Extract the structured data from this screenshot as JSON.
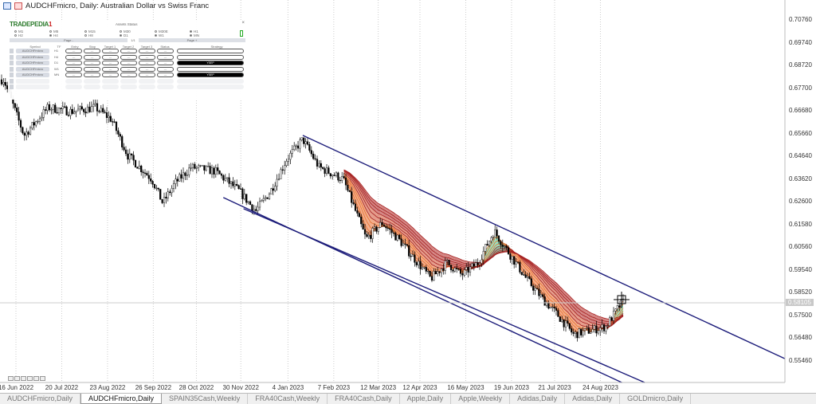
{
  "window": {
    "title": "AUDCHFmicro, Daily:  Australian Dollar vs Swiss Franc"
  },
  "panel": {
    "logo": "TRADEPEDIA",
    "logo_num": "1",
    "title": "Assets Status",
    "close": "×",
    "timeframes": [
      {
        "label": "M1",
        "on": false
      },
      {
        "label": "M5",
        "on": false
      },
      {
        "label": "M15",
        "on": false
      },
      {
        "label": "M30",
        "on": false
      },
      {
        "label": "M30E",
        "on": false
      },
      {
        "label": "H1",
        "on": true
      },
      {
        "label": "H2",
        "on": false
      },
      {
        "label": "H4",
        "on": true
      },
      {
        "label": "H8",
        "on": false
      },
      {
        "label": "D1",
        "on": true
      },
      {
        "label": "W1",
        "on": true
      },
      {
        "label": "MN",
        "on": true
      }
    ],
    "page_prev": "Page -",
    "page_num": "1/1",
    "page_next": "Page +",
    "headers": [
      "Symbol",
      "TF",
      "Entry",
      "Stop",
      "Target 1",
      "Target 2",
      "Target 3",
      "Status",
      "Strategy"
    ],
    "rows": [
      {
        "symbol": "AUDCHFmicro",
        "tf": "H1",
        "cells": [
          "---",
          "---",
          "---",
          "---",
          "---",
          "---"
        ],
        "strategy": ""
      },
      {
        "symbol": "AUDCHFmicro",
        "tf": "H4",
        "cells": [
          "---",
          "---",
          "---",
          "---",
          "---",
          "---"
        ],
        "strategy": ""
      },
      {
        "symbol": "AUDCHFmicro",
        "tf": "D1",
        "cells": [
          "---",
          "---",
          "---",
          "---",
          "---",
          "---"
        ],
        "strategy": "YSEP"
      },
      {
        "symbol": "AUDCHFmicro",
        "tf": "W1",
        "cells": [
          "---",
          "---",
          "---",
          "---",
          "---",
          "---"
        ],
        "strategy": ""
      },
      {
        "symbol": "AUDCHFmicro",
        "tf": "MN",
        "cells": [
          "---",
          "---",
          "---",
          "---",
          "---",
          "---"
        ],
        "strategy": "YSEP"
      }
    ]
  },
  "chart_data": {
    "type": "candlestick",
    "symbol": "AUDCHFmicro",
    "timeframe": "Daily",
    "y_ticks": [
      "0.70760",
      "0.69740",
      "0.68720",
      "0.67700",
      "0.66680",
      "0.65660",
      "0.64640",
      "0.63620",
      "0.62600",
      "0.61580",
      "0.60560",
      "0.59540",
      "0.58520",
      "0.57500",
      "0.56480",
      "0.55460"
    ],
    "ylim": [
      0.5546,
      0.7076
    ],
    "current_price": "0.58105",
    "x_ticks": [
      "16 Jun 2022",
      "20 Jul 2022",
      "23 Aug 2022",
      "26 Sep 2022",
      "28 Oct 2022",
      "30 Nov 2022",
      "4 Jan 2023",
      "7 Feb 2023",
      "12 Mar 2023",
      "12 Apr 2023",
      "16 May 2023",
      "19 Jun 2023",
      "21 Jul 2023",
      "24 Aug 2023"
    ],
    "x_tick_dates": [
      "2022-06-16",
      "2022-07-20",
      "2022-08-23",
      "2022-09-26",
      "2022-10-28",
      "2022-11-30",
      "2023-01-04",
      "2023-02-07",
      "2023-03-12",
      "2023-04-12",
      "2023-05-16",
      "2023-06-19",
      "2023-07-21",
      "2023-08-24"
    ],
    "close_path": [
      [
        "2022-06-07",
        0.6808
      ],
      [
        "2022-06-22",
        0.6558
      ],
      [
        "2022-07-10",
        0.6683
      ],
      [
        "2022-07-27",
        0.6665
      ],
      [
        "2022-08-14",
        0.6683
      ],
      [
        "2022-08-26",
        0.6629
      ],
      [
        "2022-09-07",
        0.6468
      ],
      [
        "2022-09-25",
        0.6361
      ],
      [
        "2022-10-03",
        0.6254
      ],
      [
        "2022-10-12",
        0.6343
      ],
      [
        "2022-10-24",
        0.6415
      ],
      [
        "2022-11-11",
        0.6397
      ],
      [
        "2022-11-29",
        0.6307
      ],
      [
        "2022-12-11",
        0.6218
      ],
      [
        "2022-12-22",
        0.6307
      ],
      [
        "2023-01-03",
        0.645
      ],
      [
        "2023-01-15",
        0.654
      ],
      [
        "2023-01-27",
        0.6415
      ],
      [
        "2023-02-14",
        0.6361
      ],
      [
        "2023-02-22",
        0.6236
      ],
      [
        "2023-03-03",
        0.6093
      ],
      [
        "2023-03-15",
        0.6165
      ],
      [
        "2023-03-27",
        0.6093
      ],
      [
        "2023-04-08",
        0.6004
      ],
      [
        "2023-04-20",
        0.5915
      ],
      [
        "2023-05-02",
        0.5986
      ],
      [
        "2023-05-13",
        0.5932
      ],
      [
        "2023-05-25",
        0.5986
      ],
      [
        "2023-06-06",
        0.6129
      ],
      [
        "2023-06-18",
        0.6022
      ],
      [
        "2023-06-30",
        0.5915
      ],
      [
        "2023-07-12",
        0.5825
      ],
      [
        "2023-07-23",
        0.5754
      ],
      [
        "2023-08-04",
        0.5665
      ],
      [
        "2023-08-16",
        0.5682
      ],
      [
        "2023-08-28",
        0.57
      ],
      [
        "2023-09-09",
        0.581
      ]
    ],
    "trendlines": [
      {
        "from": [
          "2023-01-15",
          0.6558
        ],
        "to": [
          "2024-01-09",
          0.5556
        ],
        "color": "#1c1c7a"
      },
      {
        "from": [
          "2022-11-17",
          0.6279
        ],
        "to": [
          "2023-09-09",
          0.5449
        ],
        "color": "#1c1c7a"
      },
      {
        "from": [
          "2022-12-02",
          0.6229
        ],
        "to": [
          "2023-09-26",
          0.5449
        ],
        "color": "#1c1c7a"
      }
    ],
    "ribbon": {
      "start": "2023-02-14",
      "colors": {
        "bull": "#3cc48a",
        "bear": "#b0201e",
        "mid": "#e86a2c"
      }
    }
  },
  "tabs": [
    {
      "label": "AUDCHFmicro,Daily",
      "active": false
    },
    {
      "label": "AUDCHFmicro,Daily",
      "active": true
    },
    {
      "label": "SPAIN35Cash,Weekly",
      "active": false
    },
    {
      "label": "FRA40Cash,Weekly",
      "active": false
    },
    {
      "label": "FRA40Cash,Daily",
      "active": false
    },
    {
      "label": "Apple,Daily",
      "active": false
    },
    {
      "label": "Apple,Weekly",
      "active": false
    },
    {
      "label": "Adidas,Daily",
      "active": false
    },
    {
      "label": "Adidas,Daily",
      "active": false
    },
    {
      "label": "GOLDmicro,Daily",
      "active": false
    }
  ]
}
